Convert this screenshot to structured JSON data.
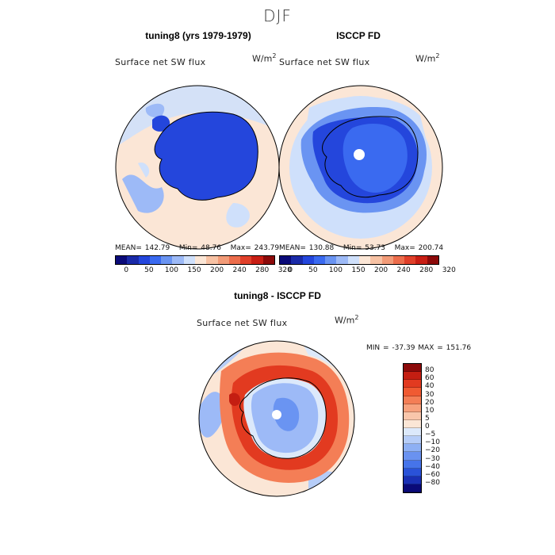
{
  "season": "DJF",
  "panels": [
    {
      "title": "tuning8 (yrs 1979-1979)",
      "variable": "Surface net SW flux",
      "units_base": "W/m",
      "units_sup": "2",
      "stats": {
        "mean_label": "MEAN=",
        "mean": "142.79",
        "min_label": "Min=",
        "min": "48.76",
        "max_label": "Max=",
        "max": "243.79"
      }
    },
    {
      "title": "ISCCP FD",
      "variable": "Surface net SW flux",
      "units_base": "W/m",
      "units_sup": "2",
      "stats": {
        "mean_label": "MEAN=",
        "mean": "130.88",
        "min_label": "Min=",
        "min": "53.73",
        "max_label": "Max=",
        "max": "200.74"
      }
    }
  ],
  "abs_colorbar": {
    "colors": [
      "#0a0a78",
      "#1a2aa8",
      "#2446dc",
      "#3a6af0",
      "#6a94f2",
      "#9dbaf7",
      "#cfe0fb",
      "#fbe6d6",
      "#f7c2a4",
      "#f29b78",
      "#ec6d4c",
      "#e0402a",
      "#c81e14",
      "#8c0a0a"
    ],
    "ticks": [
      "0",
      "50",
      "100",
      "150",
      "200",
      "240",
      "280",
      "320"
    ]
  },
  "diff_panel": {
    "title": "tuning8 - ISCCP FD",
    "variable": "Surface net SW flux",
    "units_base": "W/m",
    "units_sup": "2",
    "minmax": "MIN = -37.39 MAX = 151.76"
  },
  "diff_colorbar": {
    "colors": [
      "#8c0a0a",
      "#c41e12",
      "#e23a20",
      "#f05a32",
      "#f47e56",
      "#f7a27e",
      "#f9c6ab",
      "#fbe6d6",
      "#dce9fb",
      "#b6cdf8",
      "#8eb0f4",
      "#6a92f0",
      "#4674ea",
      "#2a52d8",
      "#1a30b4",
      "#0a0a78"
    ],
    "ticks": [
      "80",
      "60",
      "40",
      "30",
      "20",
      "10",
      "5",
      "0",
      "−5",
      "−10",
      "−20",
      "−30",
      "−40",
      "−60",
      "−80"
    ]
  }
}
